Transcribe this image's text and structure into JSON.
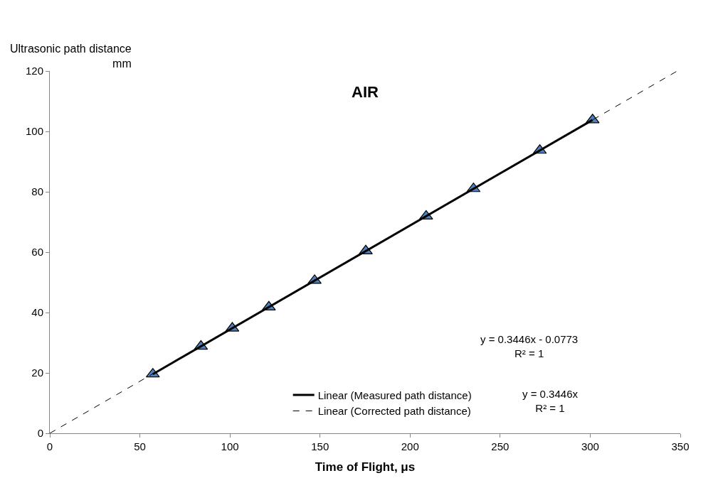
{
  "chart_data": {
    "type": "scatter",
    "title": "AIR",
    "xlabel": "Time of Flight, μs",
    "ylabel": "Ultrasonic path distance\nmm",
    "xlim": [
      0,
      350
    ],
    "xticks": [
      0,
      50,
      100,
      150,
      200,
      250,
      300,
      350
    ],
    "ylim": [
      0,
      120
    ],
    "yticks": [
      0,
      20,
      40,
      60,
      80,
      100,
      120
    ],
    "legend": "bottom",
    "marker": "triangle",
    "series": [
      {
        "color": "#4f81bd",
        "x": [
          57.2,
          83.9,
          101.3,
          121.6,
          147,
          175.4,
          208.9,
          235.2,
          272,
          301.3
        ],
        "values": [
          19.6,
          28.8,
          34.8,
          41.8,
          50.6,
          60.4,
          71.9,
          81,
          93.7,
          103.8
        ]
      },
      {
        "type": "line",
        "name": "Linear (Measured path distance)",
        "color": "#000000",
        "line_style": "solid",
        "marker": "none",
        "x": [
          57.2,
          301.3
        ],
        "values": [
          19.6,
          103.8
        ]
      },
      {
        "type": "line",
        "name": "Linear (Corrected path distance)",
        "color": "#000000",
        "line_style": "dashed",
        "marker": "none",
        "x": [
          0,
          348
        ],
        "values": [
          0,
          119.9
        ]
      }
    ],
    "annotations": [
      "y = 0.3446x - 0.0773\nR² = 1",
      "y = 0.3446x\nR² = 1"
    ]
  }
}
